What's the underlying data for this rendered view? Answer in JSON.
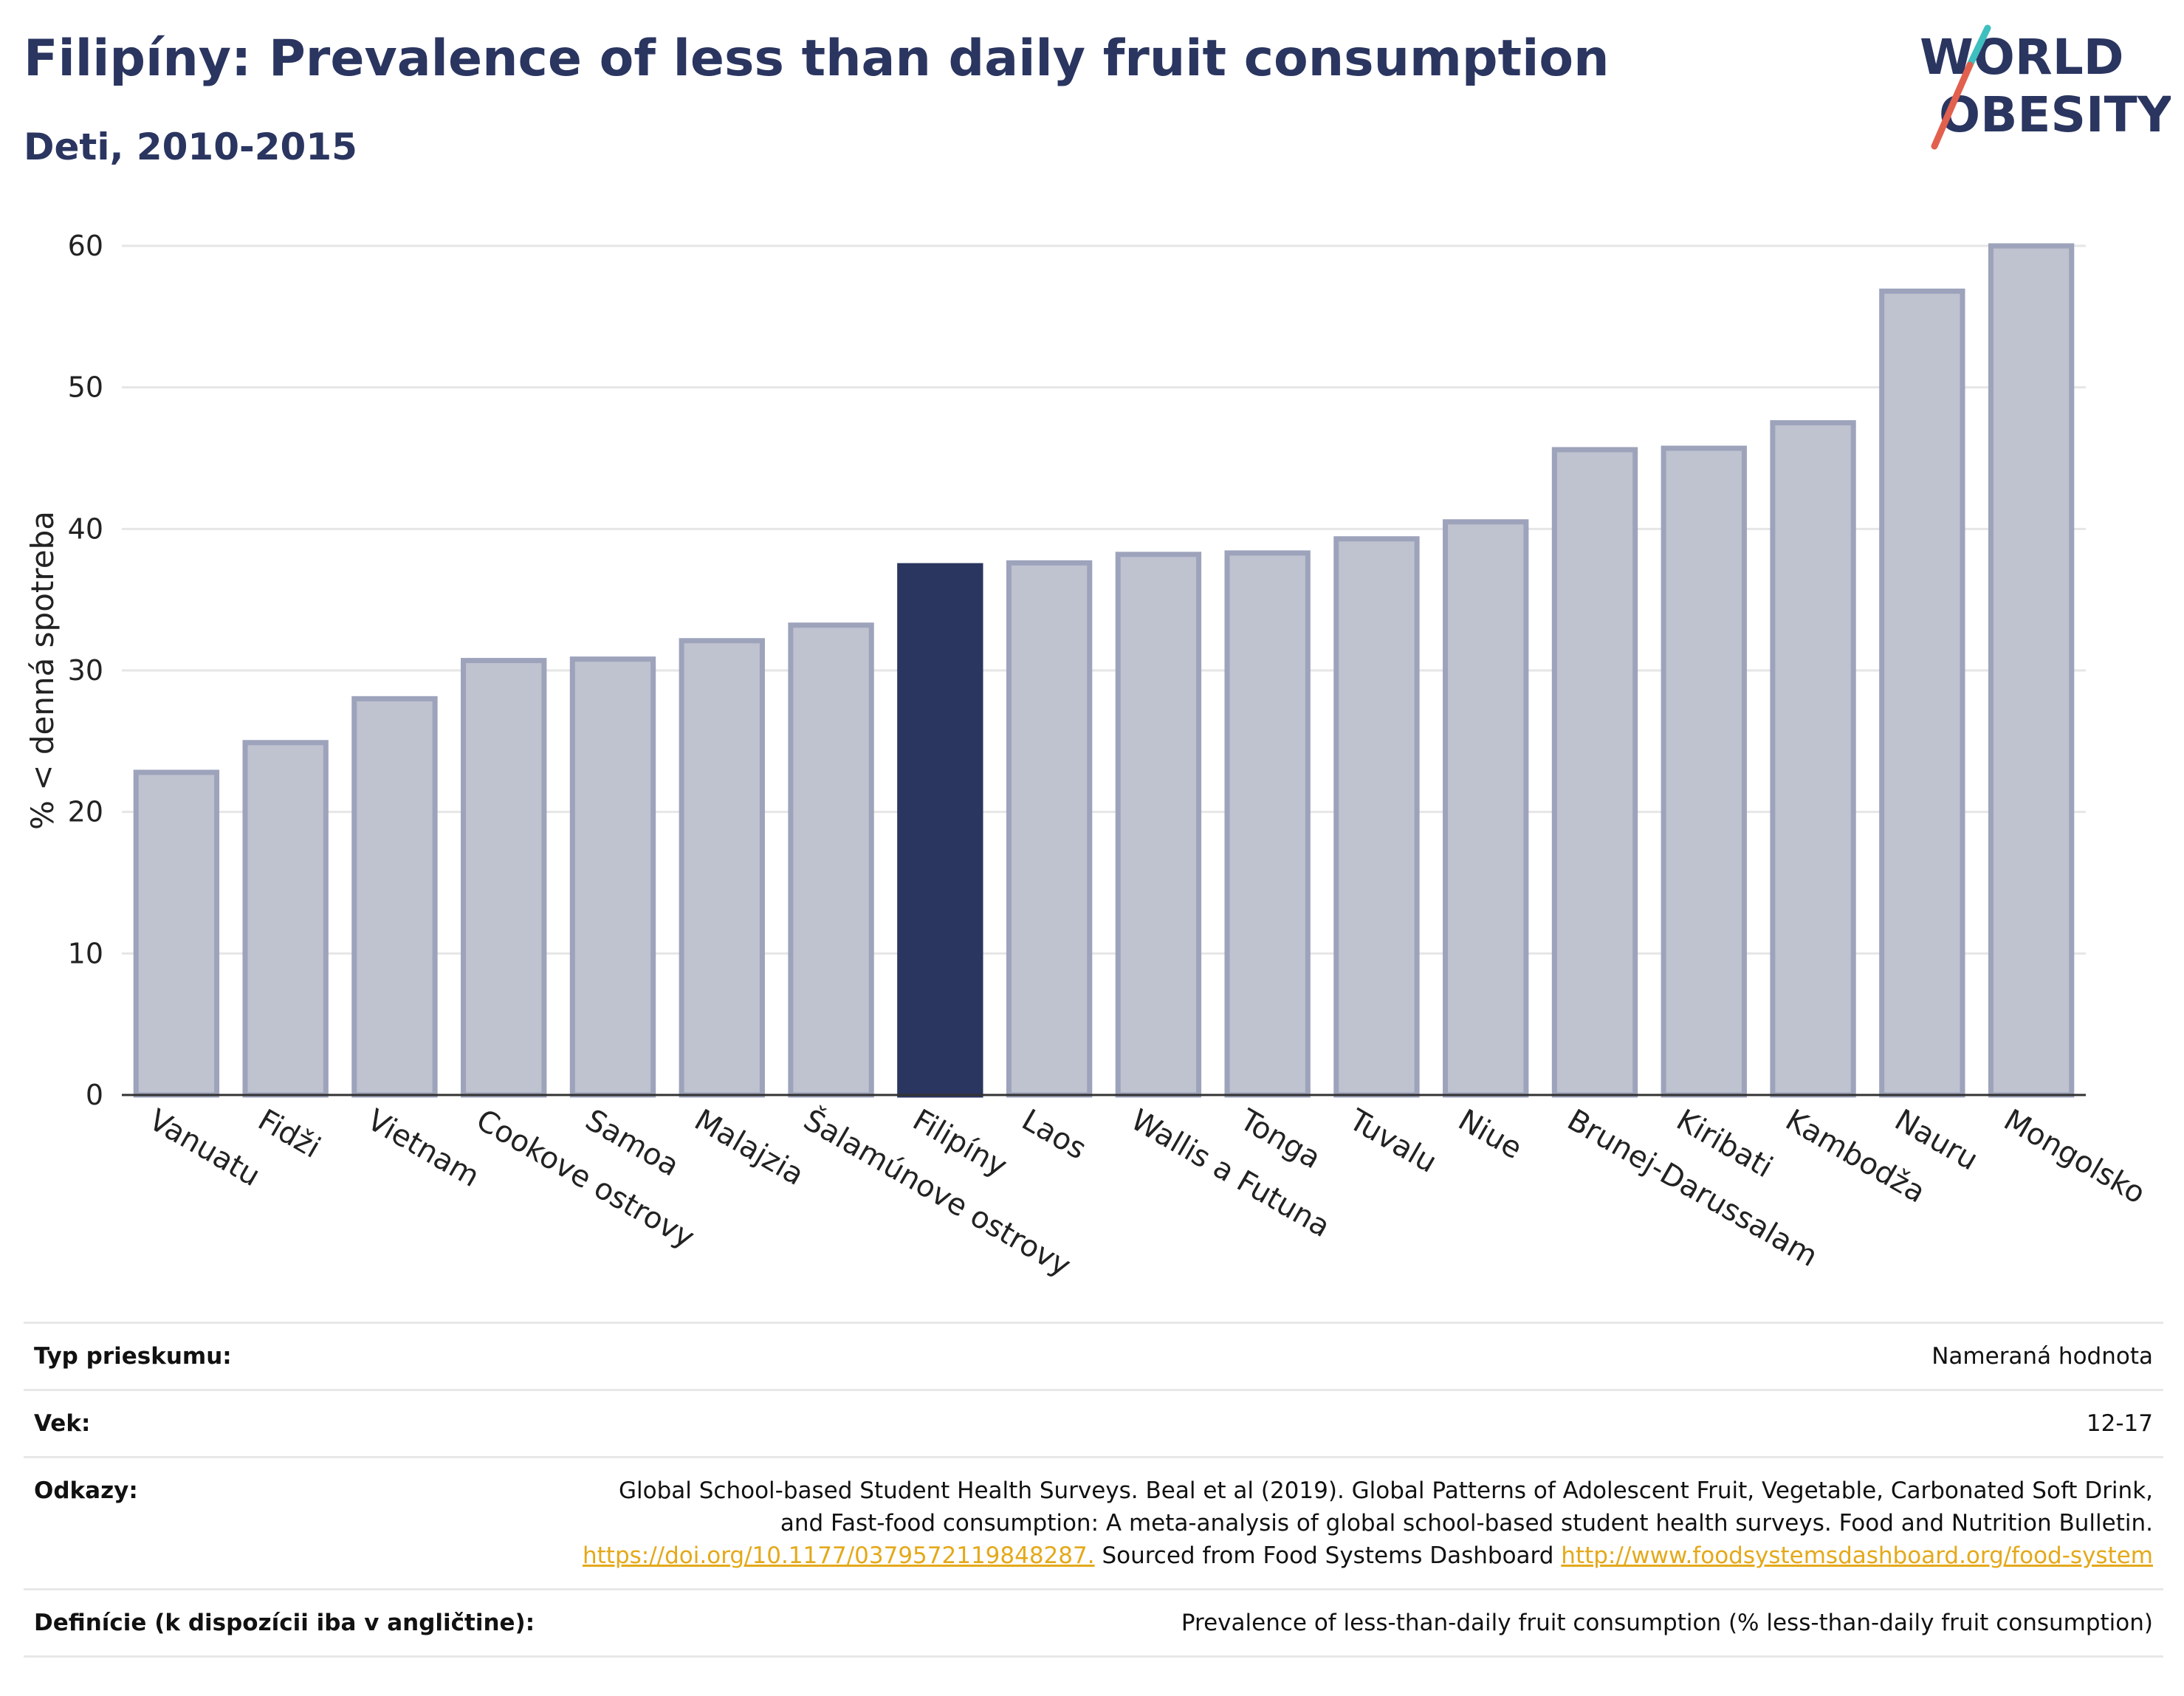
{
  "header": {
    "title": "Filipíny: Prevalence of less than daily fruit consumption",
    "subtitle": "Deti, 2010-2015"
  },
  "logo": {
    "line1": "WORLD",
    "line2": "OBESITY"
  },
  "colors": {
    "bar": "#bfc2cf",
    "bar_stroke": "#9da3bb",
    "highlight": "#2a3560",
    "text": "#2a3560",
    "link": "#e4a91a"
  },
  "chart_data": {
    "type": "bar",
    "ylabel": "% < denná spotreba",
    "xlabel": "",
    "ylim": [
      0,
      60
    ],
    "yticks": [
      0,
      10,
      20,
      30,
      40,
      50,
      60
    ],
    "grid": true,
    "highlight": "Filipíny",
    "categories": [
      "Vanuatu",
      "Fidži",
      "Vietnam",
      "Cookove ostrovy",
      "Samoa",
      "Malajzia",
      "Šalamúnove ostrovy",
      "Filipíny",
      "Laos",
      "Wallis a Futuna",
      "Tonga",
      "Tuvalu",
      "Niue",
      "Brunej-Darussalam",
      "Kiribati",
      "Kambodža",
      "Nauru",
      "Mongolsko"
    ],
    "values": [
      22.8,
      24.9,
      28.0,
      30.7,
      30.8,
      32.1,
      33.2,
      37.4,
      37.6,
      38.2,
      38.3,
      39.3,
      40.5,
      45.6,
      45.7,
      47.5,
      56.8,
      60.0
    ]
  },
  "meta": {
    "survey_type": {
      "label": "Typ prieskumu:",
      "value": "Nameraná hodnota"
    },
    "age": {
      "label": "Vek:",
      "value": "12-17"
    },
    "references": {
      "label": "Odkazy:",
      "text1": "Global School-based Student Health Surveys. Beal et al (2019). Global Patterns of Adolescent Fruit, Vegetable, Carbonated Soft Drink, and Fast-food consumption: A meta-analysis of global school-based student health surveys. Food and Nutrition Bulletin.",
      "link1": "https://doi.org/10.1177/0379572119848287.",
      "text2": "Sourced from Food Systems Dashboard",
      "link2": "http://www.foodsystemsdashboard.org/food-system"
    },
    "definition": {
      "label": "Definície (k dispozícii iba v angličtine):",
      "value": "Prevalence of less-than-daily fruit consumption (% less-than-daily fruit consumption)"
    }
  }
}
